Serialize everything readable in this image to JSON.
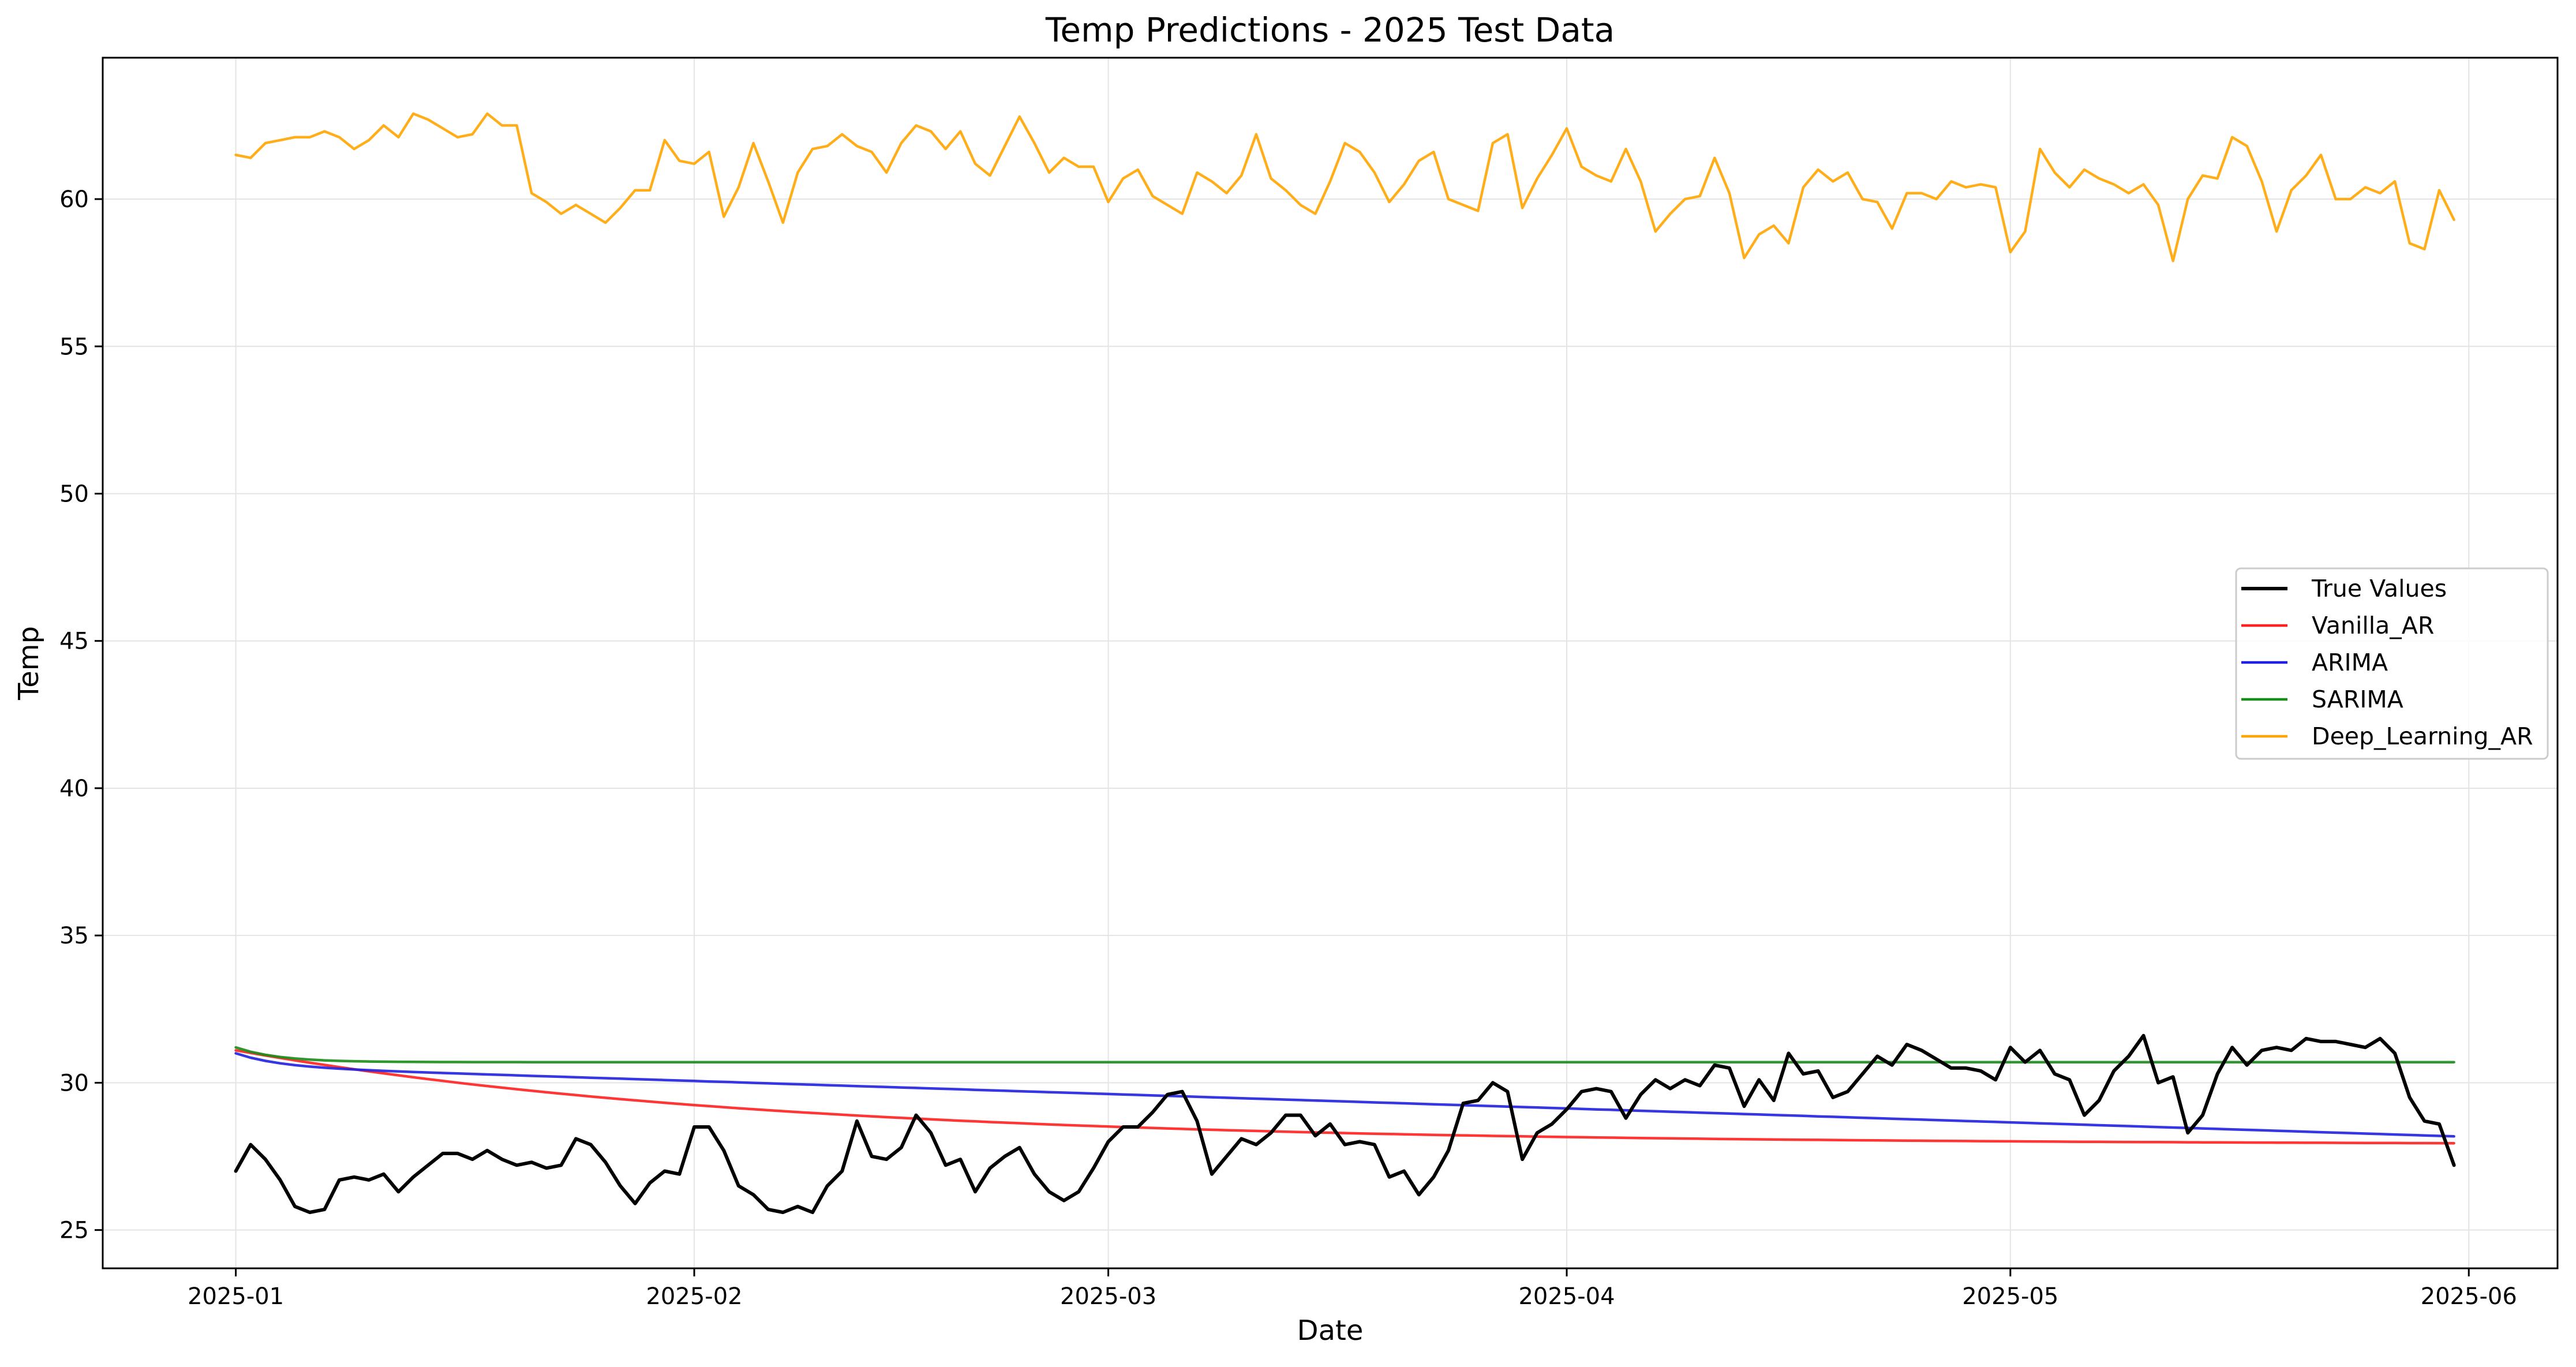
{
  "chart_data": {
    "type": "line",
    "title": "Temp Predictions - 2025 Test Data",
    "xlabel": "Date",
    "ylabel": "Temp",
    "x_axis_type": "date",
    "xlim": [
      "2024-12-23",
      "2025-06-07"
    ],
    "ylim": [
      23.7,
      64.8
    ],
    "xticks": [
      "2025-01",
      "2025-02",
      "2025-03",
      "2025-04",
      "2025-05",
      "2025-06"
    ],
    "xtick_dates": [
      "2025-01-01",
      "2025-02-01",
      "2025-03-01",
      "2025-04-01",
      "2025-05-01",
      "2025-06-01"
    ],
    "yticks": [
      25,
      30,
      35,
      40,
      45,
      50,
      55,
      60
    ],
    "grid": true,
    "legend_position": "center-right",
    "date_range": {
      "start": "2025-01-01",
      "end": "2025-05-31"
    },
    "series": [
      {
        "name": "True Values",
        "color": "#000000",
        "values": [
          27.0,
          27.9,
          27.4,
          26.7,
          25.8,
          25.6,
          25.7,
          26.7,
          26.8,
          26.7,
          26.9,
          26.3,
          26.8,
          27.2,
          27.6,
          27.6,
          27.4,
          27.7,
          27.4,
          27.2,
          27.3,
          27.1,
          27.2,
          28.1,
          27.9,
          27.3,
          26.5,
          25.9,
          26.6,
          27.0,
          26.9,
          28.5,
          28.5,
          27.7,
          26.5,
          26.2,
          25.7,
          25.6,
          25.8,
          25.6,
          26.5,
          27.0,
          28.7,
          27.5,
          27.4,
          27.8,
          28.9,
          28.3,
          27.2,
          27.4,
          26.3,
          27.1,
          27.5,
          27.8,
          26.9,
          26.3,
          26.0,
          26.3,
          27.1,
          28.0,
          28.5,
          28.5,
          29.0,
          29.6,
          29.7,
          28.7,
          26.9,
          27.5,
          28.1,
          27.9,
          28.3,
          28.9,
          28.9,
          28.2,
          28.6,
          27.9,
          28.0,
          27.9,
          26.8,
          27.0,
          26.2,
          26.8,
          27.7,
          29.3,
          29.4,
          30.0,
          29.7,
          27.4,
          28.3,
          28.6,
          29.1,
          29.7,
          29.8,
          29.7,
          28.8,
          29.6,
          30.1,
          29.8,
          30.1,
          29.9,
          30.6,
          30.5,
          29.2,
          30.1,
          29.4,
          31.0,
          30.3,
          30.4,
          29.5,
          29.7,
          30.3,
          30.9,
          30.6,
          31.3,
          31.1,
          30.8,
          30.5,
          30.5,
          30.4,
          30.1,
          31.2,
          30.7,
          31.1,
          30.3,
          30.1,
          28.9,
          29.4,
          30.4,
          30.9,
          31.6,
          30.0,
          30.2,
          28.3,
          28.9,
          30.3,
          31.2,
          30.6,
          31.1,
          31.2,
          31.1,
          31.5,
          31.4,
          31.4,
          31.3,
          31.2,
          31.5,
          31.0,
          29.5,
          28.7,
          28.6,
          27.2
        ]
      },
      {
        "name": "Vanilla_AR",
        "color": "#ff2020",
        "model": {
          "type": "exp-decay",
          "start": 31.1,
          "asymptote": 27.9,
          "rate": 0.028
        }
      },
      {
        "name": "ARIMA",
        "color": "#2020e0",
        "model": {
          "type": "exp-decay-linear",
          "start": 31.0,
          "base": 30.55,
          "base_rate": 0.35,
          "slope": 0.0158
        }
      },
      {
        "name": "SARIMA",
        "color": "#1a8c1a",
        "model": {
          "type": "exp-decay",
          "start": 31.2,
          "asymptote": 30.7,
          "rate": 0.35
        }
      },
      {
        "name": "Deep_Learning_AR",
        "color": "#ffa500",
        "values": [
          61.5,
          61.4,
          61.9,
          62.0,
          62.1,
          62.1,
          62.3,
          62.1,
          61.7,
          62.0,
          62.5,
          62.1,
          62.9,
          62.7,
          62.4,
          62.1,
          62.2,
          62.9,
          62.5,
          62.5,
          60.2,
          59.9,
          59.5,
          59.8,
          59.5,
          59.2,
          59.7,
          60.3,
          60.3,
          62.0,
          61.3,
          61.2,
          61.6,
          59.4,
          60.4,
          61.9,
          60.6,
          59.2,
          60.9,
          61.7,
          61.8,
          62.2,
          61.8,
          61.6,
          60.9,
          61.9,
          62.5,
          62.3,
          61.7,
          62.3,
          61.2,
          60.8,
          61.8,
          62.8,
          61.9,
          60.9,
          61.4,
          61.1,
          61.1,
          59.9,
          60.7,
          61.0,
          60.1,
          59.8,
          59.5,
          60.9,
          60.6,
          60.2,
          60.8,
          62.2,
          60.7,
          60.3,
          59.8,
          59.5,
          60.6,
          61.9,
          61.6,
          60.9,
          59.9,
          60.5,
          61.3,
          61.6,
          60.0,
          59.8,
          59.6,
          61.9,
          62.2,
          59.7,
          60.7,
          61.5,
          62.4,
          61.1,
          60.8,
          60.6,
          61.7,
          60.6,
          58.9,
          59.5,
          60.0,
          60.1,
          61.4,
          60.2,
          58.0,
          58.8,
          59.1,
          58.5,
          60.4,
          61.0,
          60.6,
          60.9,
          60.0,
          59.9,
          59.0,
          60.2,
          60.2,
          60.0,
          60.6,
          60.4,
          60.5,
          60.4,
          58.2,
          58.9,
          61.7,
          60.9,
          60.4,
          61.0,
          60.7,
          60.5,
          60.2,
          60.5,
          59.8,
          57.9,
          60.0,
          60.8,
          60.7,
          62.1,
          61.8,
          60.6,
          58.9,
          60.3,
          60.8,
          61.5,
          60.0,
          60.0,
          60.4,
          60.2,
          60.6,
          58.5,
          58.3,
          60.3,
          59.3
        ]
      }
    ]
  }
}
